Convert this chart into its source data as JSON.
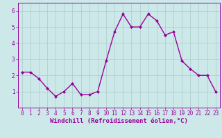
{
  "x": [
    0,
    1,
    2,
    3,
    4,
    5,
    6,
    7,
    8,
    9,
    10,
    11,
    12,
    13,
    14,
    15,
    16,
    17,
    18,
    19,
    20,
    21,
    22,
    23
  ],
  "y": [
    2.2,
    2.2,
    1.8,
    1.2,
    0.7,
    1.0,
    1.5,
    0.8,
    0.8,
    1.0,
    2.9,
    4.7,
    5.8,
    5.0,
    5.0,
    5.8,
    5.4,
    4.5,
    4.7,
    2.9,
    2.4,
    2.0,
    2.0,
    1.0
  ],
  "line_color": "#990099",
  "marker": "D",
  "marker_size": 2,
  "linewidth": 1.0,
  "xlabel": "Windchill (Refroidissement éolien,°C)",
  "xlim": [
    -0.5,
    23.5
  ],
  "ylim": [
    0,
    6.5
  ],
  "yticks": [
    1,
    2,
    3,
    4,
    5,
    6
  ],
  "xticks": [
    0,
    1,
    2,
    3,
    4,
    5,
    6,
    7,
    8,
    9,
    10,
    11,
    12,
    13,
    14,
    15,
    16,
    17,
    18,
    19,
    20,
    21,
    22,
    23
  ],
  "bg_color": "#cce8e8",
  "grid_color": "#aacccc",
  "tick_label_fontsize": 5.5,
  "xlabel_fontsize": 6.5
}
